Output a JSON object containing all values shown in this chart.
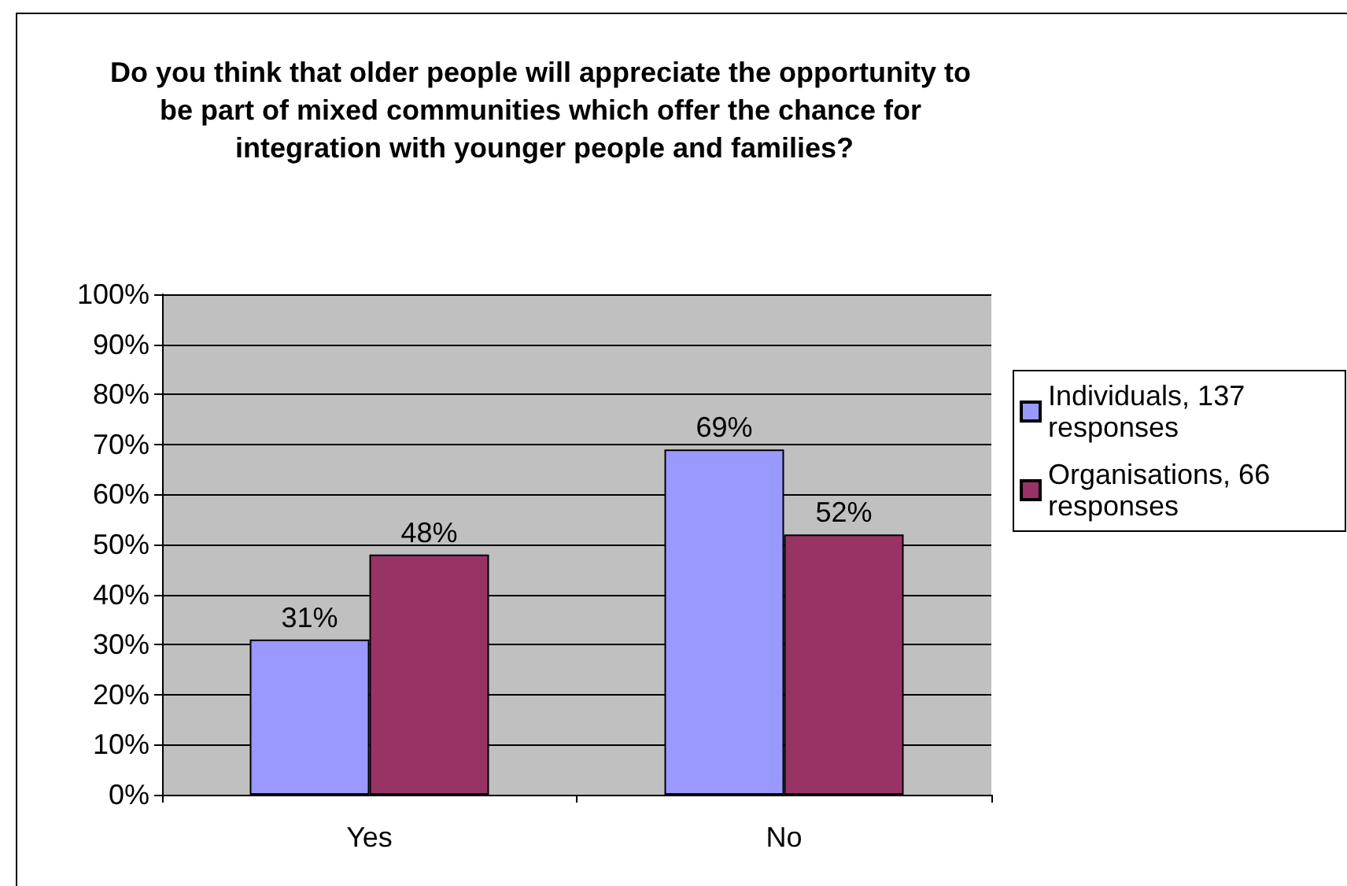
{
  "chart_data": {
    "type": "bar",
    "title": "Do you think that older people will appreciate the opportunity to be part of mixed communities which offer the chance for integration with younger people and families?",
    "categories": [
      "Yes",
      "No"
    ],
    "series": [
      {
        "name": "Individuals, 137 responses",
        "color": "#9999ff",
        "values": [
          31,
          69
        ],
        "value_labels": [
          "31%",
          "69%"
        ]
      },
      {
        "name": "Organisations, 66 responses",
        "color": "#993366",
        "values": [
          48,
          52
        ],
        "value_labels": [
          "48%",
          "52%"
        ]
      }
    ],
    "ylim": [
      0,
      100
    ],
    "yticks": [
      {
        "value": 0,
        "label": "0%"
      },
      {
        "value": 10,
        "label": "10%"
      },
      {
        "value": 20,
        "label": "20%"
      },
      {
        "value": 30,
        "label": "30%"
      },
      {
        "value": 40,
        "label": "40%"
      },
      {
        "value": 50,
        "label": "50%"
      },
      {
        "value": 60,
        "label": "60%"
      },
      {
        "value": 70,
        "label": "70%"
      },
      {
        "value": 80,
        "label": "80%"
      },
      {
        "value": 90,
        "label": "90%"
      },
      {
        "value": 100,
        "label": "100%"
      }
    ],
    "grid": "y",
    "legend": "right"
  }
}
